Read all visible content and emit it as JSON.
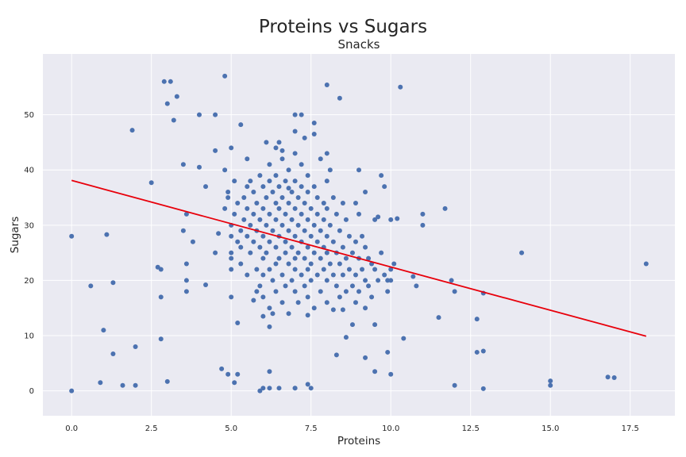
{
  "chart_data": {
    "type": "scatter",
    "title": "Proteins vs Sugars",
    "subtitle": "Snacks",
    "xlabel": "Proteins",
    "ylabel": "Sugars",
    "xlim": [
      -0.9,
      18.9
    ],
    "ylim": [
      -4.5,
      61
    ],
    "xticks": [
      0,
      2.5,
      5,
      7.5,
      10,
      12.5,
      15,
      17.5
    ],
    "xtick_labels": [
      "0.0",
      "2.5",
      "5.0",
      "7.5",
      "10.0",
      "12.5",
      "15.0",
      "17.5"
    ],
    "yticks": [
      0,
      10,
      20,
      30,
      40,
      50
    ],
    "ytick_labels": [
      "0",
      "10",
      "20",
      "30",
      "40",
      "50"
    ],
    "grid": true,
    "colors": {
      "points": "#4c72b0",
      "fit_line": "#e8000b",
      "background": "#eaeaf2"
    },
    "trend_line": {
      "x": [
        0,
        18
      ],
      "y": [
        38.1,
        9.9
      ]
    },
    "points": [
      [
        0,
        28
      ],
      [
        0,
        0
      ],
      [
        0.6,
        19
      ],
      [
        0.9,
        1.5
      ],
      [
        1,
        11
      ],
      [
        1.1,
        28.3
      ],
      [
        1.3,
        19.6
      ],
      [
        1.3,
        6.7
      ],
      [
        1.6,
        1
      ],
      [
        1.9,
        47.2
      ],
      [
        2,
        8
      ],
      [
        2,
        1
      ],
      [
        2.5,
        37.7
      ],
      [
        2.7,
        22.4
      ],
      [
        2.8,
        22
      ],
      [
        2.8,
        17
      ],
      [
        2.8,
        9.4
      ],
      [
        2.9,
        56
      ],
      [
        3,
        52
      ],
      [
        3,
        1.7
      ],
      [
        3.1,
        56
      ],
      [
        3.2,
        49
      ],
      [
        3.3,
        53.3
      ],
      [
        3.5,
        41
      ],
      [
        3.5,
        29
      ],
      [
        3.6,
        32
      ],
      [
        3.6,
        23
      ],
      [
        3.6,
        20
      ],
      [
        3.6,
        18
      ],
      [
        3.8,
        27
      ],
      [
        4,
        50
      ],
      [
        4,
        40.5
      ],
      [
        4.2,
        37
      ],
      [
        4.2,
        19.2
      ],
      [
        4.5,
        50
      ],
      [
        4.5,
        43.5
      ],
      [
        4.5,
        25
      ],
      [
        4.6,
        28.5
      ],
      [
        4.7,
        4
      ],
      [
        4.8,
        57
      ],
      [
        4.8,
        40
      ],
      [
        4.9,
        3
      ],
      [
        5,
        44
      ],
      [
        5,
        17
      ],
      [
        5.1,
        1.5
      ],
      [
        5.2,
        3
      ],
      [
        5.2,
        12.3
      ],
      [
        5.3,
        48.2
      ],
      [
        5.5,
        42
      ],
      [
        5.6,
        38
      ],
      [
        5.7,
        16.4
      ],
      [
        5.8,
        18
      ],
      [
        5.9,
        0
      ],
      [
        6,
        0.5
      ],
      [
        6,
        13.5
      ],
      [
        6.1,
        45
      ],
      [
        6.2,
        0.5
      ],
      [
        6.2,
        3.5
      ],
      [
        6.2,
        11.6
      ],
      [
        6.3,
        14
      ],
      [
        6.5,
        0.5
      ],
      [
        6.5,
        45
      ],
      [
        6.6,
        43.5
      ],
      [
        6.8,
        36.7
      ],
      [
        7,
        50
      ],
      [
        7,
        47
      ],
      [
        7,
        0.5
      ],
      [
        7,
        0.5
      ],
      [
        7.2,
        50
      ],
      [
        7.3,
        45.8
      ],
      [
        7.4,
        1.2
      ],
      [
        7.4,
        13.7
      ],
      [
        7.5,
        0.5
      ],
      [
        7.6,
        48.5
      ],
      [
        7.6,
        46.5
      ],
      [
        7.8,
        42
      ],
      [
        8,
        55.4
      ],
      [
        8,
        43
      ],
      [
        8.1,
        40
      ],
      [
        8.2,
        14.7
      ],
      [
        8.3,
        6.5
      ],
      [
        8.4,
        53
      ],
      [
        8.5,
        14.7
      ],
      [
        8.6,
        9.7
      ],
      [
        8.8,
        12
      ],
      [
        8.9,
        34
      ],
      [
        9,
        40
      ],
      [
        9.2,
        36
      ],
      [
        9.2,
        6
      ],
      [
        9.4,
        23
      ],
      [
        9.5,
        31
      ],
      [
        9.5,
        3.5
      ],
      [
        9.6,
        31.5
      ],
      [
        9.7,
        39
      ],
      [
        9.8,
        37
      ],
      [
        9.9,
        7
      ],
      [
        9.9,
        20
      ],
      [
        10,
        22
      ],
      [
        10,
        3
      ],
      [
        10,
        31
      ],
      [
        10.2,
        31.2
      ],
      [
        10.3,
        55
      ],
      [
        10.4,
        9.5
      ],
      [
        10.7,
        20.7
      ],
      [
        10.8,
        19
      ],
      [
        11,
        30
      ],
      [
        11,
        32
      ],
      [
        11.5,
        13.3
      ],
      [
        11.7,
        33
      ],
      [
        11.9,
        20
      ],
      [
        12,
        18
      ],
      [
        12,
        1
      ],
      [
        12.7,
        13
      ],
      [
        12.7,
        7
      ],
      [
        12.9,
        7.2
      ],
      [
        12.9,
        0.4
      ],
      [
        12.9,
        17.7
      ],
      [
        14.1,
        25
      ],
      [
        15,
        1.8
      ],
      [
        15,
        1
      ],
      [
        16.8,
        2.5
      ],
      [
        17,
        2.4
      ],
      [
        18,
        23
      ],
      [
        4.8,
        33
      ],
      [
        4.9,
        35
      ],
      [
        4.9,
        36
      ],
      [
        5,
        30
      ],
      [
        5,
        28
      ],
      [
        5,
        25
      ],
      [
        5,
        22
      ],
      [
        5,
        24
      ],
      [
        5.1,
        32
      ],
      [
        5.1,
        38
      ],
      [
        5.2,
        34
      ],
      [
        5.2,
        27
      ],
      [
        5.3,
        29
      ],
      [
        5.3,
        26
      ],
      [
        5.3,
        23
      ],
      [
        5.4,
        31
      ],
      [
        5.4,
        35
      ],
      [
        5.5,
        37
      ],
      [
        5.5,
        33
      ],
      [
        5.5,
        28
      ],
      [
        5.5,
        21
      ],
      [
        5.6,
        25
      ],
      [
        5.6,
        30
      ],
      [
        5.7,
        36
      ],
      [
        5.7,
        32
      ],
      [
        5.7,
        27
      ],
      [
        5.8,
        34
      ],
      [
        5.8,
        29
      ],
      [
        5.8,
        22
      ],
      [
        5.9,
        39
      ],
      [
        5.9,
        31
      ],
      [
        5.9,
        26
      ],
      [
        5.9,
        19
      ],
      [
        6,
        37
      ],
      [
        6,
        33
      ],
      [
        6,
        28
      ],
      [
        6,
        24
      ],
      [
        6,
        21
      ],
      [
        6,
        17
      ],
      [
        6.1,
        35
      ],
      [
        6.1,
        30
      ],
      [
        6.1,
        25
      ],
      [
        6.2,
        41
      ],
      [
        6.2,
        38
      ],
      [
        6.2,
        32
      ],
      [
        6.2,
        27
      ],
      [
        6.2,
        22
      ],
      [
        6.2,
        15
      ],
      [
        6.3,
        36
      ],
      [
        6.3,
        29
      ],
      [
        6.3,
        20
      ],
      [
        6.4,
        44
      ],
      [
        6.4,
        39
      ],
      [
        6.4,
        34
      ],
      [
        6.4,
        31
      ],
      [
        6.4,
        26
      ],
      [
        6.4,
        23
      ],
      [
        6.4,
        18
      ],
      [
        6.5,
        37
      ],
      [
        6.5,
        33
      ],
      [
        6.5,
        28
      ],
      [
        6.5,
        24
      ],
      [
        6.6,
        42
      ],
      [
        6.6,
        35
      ],
      [
        6.6,
        30
      ],
      [
        6.6,
        21
      ],
      [
        6.6,
        16
      ],
      [
        6.7,
        38
      ],
      [
        6.7,
        32
      ],
      [
        6.7,
        27
      ],
      [
        6.7,
        25
      ],
      [
        6.7,
        19
      ],
      [
        6.8,
        40
      ],
      [
        6.8,
        34
      ],
      [
        6.8,
        29
      ],
      [
        6.8,
        23
      ],
      [
        6.8,
        14
      ],
      [
        6.9,
        36
      ],
      [
        6.9,
        31
      ],
      [
        6.9,
        26
      ],
      [
        6.9,
        20
      ],
      [
        7,
        43
      ],
      [
        7,
        38
      ],
      [
        7,
        33
      ],
      [
        7,
        28
      ],
      [
        7,
        24
      ],
      [
        7,
        22
      ],
      [
        7,
        18
      ],
      [
        7.1,
        35
      ],
      [
        7.1,
        30
      ],
      [
        7.1,
        25
      ],
      [
        7.1,
        16
      ],
      [
        7.2,
        41
      ],
      [
        7.2,
        37
      ],
      [
        7.2,
        32
      ],
      [
        7.2,
        27
      ],
      [
        7.2,
        21
      ],
      [
        7.3,
        34
      ],
      [
        7.3,
        29
      ],
      [
        7.3,
        24
      ],
      [
        7.3,
        19
      ],
      [
        7.4,
        39
      ],
      [
        7.4,
        36
      ],
      [
        7.4,
        31
      ],
      [
        7.4,
        26
      ],
      [
        7.4,
        22
      ],
      [
        7.4,
        17
      ],
      [
        7.5,
        33
      ],
      [
        7.5,
        28
      ],
      [
        7.5,
        23
      ],
      [
        7.5,
        20
      ],
      [
        7.6,
        37
      ],
      [
        7.6,
        30
      ],
      [
        7.6,
        25
      ],
      [
        7.6,
        15
      ],
      [
        7.7,
        35
      ],
      [
        7.7,
        32
      ],
      [
        7.7,
        27
      ],
      [
        7.7,
        21
      ],
      [
        7.8,
        29
      ],
      [
        7.8,
        24
      ],
      [
        7.8,
        18
      ],
      [
        7.9,
        34
      ],
      [
        7.9,
        31
      ],
      [
        7.9,
        26
      ],
      [
        7.9,
        22
      ],
      [
        8,
        38
      ],
      [
        8,
        33
      ],
      [
        8,
        28
      ],
      [
        8,
        25
      ],
      [
        8,
        20
      ],
      [
        8,
        16
      ],
      [
        8.1,
        30
      ],
      [
        8.1,
        23
      ],
      [
        8.2,
        35
      ],
      [
        8.2,
        27
      ],
      [
        8.2,
        21
      ],
      [
        8.3,
        32
      ],
      [
        8.3,
        25
      ],
      [
        8.3,
        19
      ],
      [
        8.4,
        29
      ],
      [
        8.4,
        23
      ],
      [
        8.4,
        17
      ],
      [
        8.5,
        34
      ],
      [
        8.5,
        26
      ],
      [
        8.5,
        21
      ],
      [
        8.6,
        31
      ],
      [
        8.6,
        24
      ],
      [
        8.6,
        18
      ],
      [
        8.7,
        28
      ],
      [
        8.7,
        22
      ],
      [
        8.8,
        25
      ],
      [
        8.8,
        19
      ],
      [
        8.9,
        27
      ],
      [
        8.9,
        21
      ],
      [
        8.9,
        16
      ],
      [
        9,
        32
      ],
      [
        9,
        24
      ],
      [
        9,
        18
      ],
      [
        9.1,
        28
      ],
      [
        9.1,
        22
      ],
      [
        9.2,
        26
      ],
      [
        9.2,
        20
      ],
      [
        9.2,
        15
      ],
      [
        9.3,
        24
      ],
      [
        9.3,
        19
      ],
      [
        9.4,
        17
      ],
      [
        9.5,
        22
      ],
      [
        9.5,
        12
      ],
      [
        9.6,
        20
      ],
      [
        9.7,
        25
      ],
      [
        9.8,
        21
      ],
      [
        9.9,
        18
      ],
      [
        10,
        20
      ],
      [
        10.1,
        23
      ]
    ]
  }
}
